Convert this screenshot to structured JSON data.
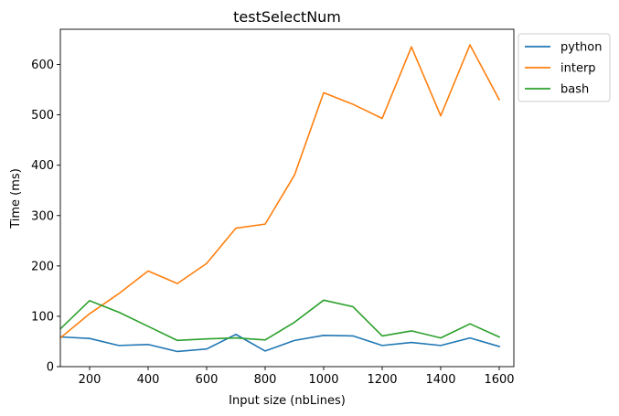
{
  "chart_data": {
    "type": "line",
    "title": "testSelectNum",
    "xlabel": "Input size (nbLines)",
    "ylabel": "Time (ms)",
    "xlim": [
      100,
      1650
    ],
    "ylim": [
      0,
      670
    ],
    "xticks": [
      200,
      400,
      600,
      800,
      1000,
      1200,
      1400,
      1600
    ],
    "yticks": [
      0,
      100,
      200,
      300,
      400,
      500,
      600
    ],
    "grid": false,
    "legend_position": "outside-top-right",
    "x": [
      100,
      200,
      300,
      400,
      500,
      600,
      700,
      800,
      900,
      1000,
      1100,
      1200,
      1300,
      1400,
      1500,
      1600
    ],
    "series": [
      {
        "name": "python",
        "color": "#1f77b4",
        "values": [
          59,
          56,
          42,
          44,
          30,
          35,
          64,
          31,
          52,
          62,
          61,
          42,
          48,
          42,
          57,
          40
        ]
      },
      {
        "name": "interp",
        "color": "#ff7f0e",
        "values": [
          57,
          105,
          145,
          190,
          165,
          205,
          275,
          283,
          380,
          544,
          521,
          493,
          635,
          498,
          639,
          530
        ]
      },
      {
        "name": "bash",
        "color": "#2ca02c",
        "values": [
          75,
          131,
          108,
          80,
          52,
          55,
          57,
          53,
          88,
          132,
          119,
          61,
          71,
          57,
          85,
          59
        ]
      }
    ]
  }
}
